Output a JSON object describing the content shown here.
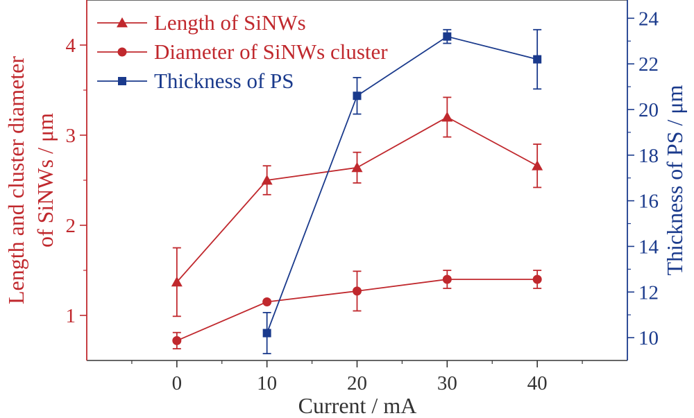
{
  "chart_data": {
    "type": "line",
    "xlabel": "Current / mA",
    "ylabel_left": [
      "Length and cluster diameter",
      "of SiNWs / μm"
    ],
    "ylabel_right": "Thickness of PS / μm",
    "xlim": [
      -10,
      50
    ],
    "x_ticks": [
      0,
      10,
      20,
      30,
      40
    ],
    "ylim_left": [
      0.5,
      4.5
    ],
    "y_left_ticks": [
      1,
      2,
      3,
      4
    ],
    "ylim_right": [
      9.0,
      24.8
    ],
    "y_right_ticks": [
      10,
      12,
      14,
      16,
      18,
      20,
      22,
      24
    ],
    "legend_position": "top-left",
    "series": [
      {
        "name": "Length of SiNWs",
        "axis": "left",
        "marker": "triangle",
        "color": "#c0282d",
        "x": [
          0,
          10,
          20,
          30,
          40
        ],
        "y": [
          1.37,
          2.5,
          2.64,
          3.2,
          2.66
        ],
        "err": [
          0.38,
          0.16,
          0.17,
          0.22,
          0.24
        ]
      },
      {
        "name": "Diameter of SiNWs cluster",
        "axis": "left",
        "marker": "circle",
        "color": "#c0282d",
        "x": [
          0,
          10,
          20,
          30,
          40
        ],
        "y": [
          0.72,
          1.15,
          1.27,
          1.4,
          1.4
        ],
        "err": [
          0.09,
          0.0,
          0.22,
          0.1,
          0.1
        ]
      },
      {
        "name": "Thickness of PS",
        "axis": "right",
        "marker": "square",
        "color": "#1a3a8c",
        "x": [
          10,
          20,
          30,
          40
        ],
        "y": [
          10.2,
          20.6,
          23.2,
          22.2
        ],
        "err": [
          0.9,
          0.8,
          0.3,
          1.3
        ]
      }
    ]
  },
  "colors": {
    "left_axis": "#c0282d",
    "right_axis": "#1a3a8c",
    "frame": "#333333"
  }
}
